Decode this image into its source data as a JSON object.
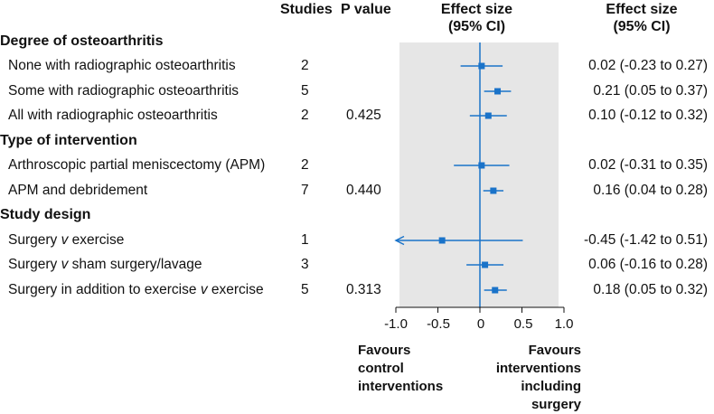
{
  "chart_data": {
    "type": "forest",
    "headers": {
      "studies": "Studies",
      "p_value": "P value",
      "effect_plot_line1": "Effect size",
      "effect_plot_line2": "(95% CI)",
      "effect_text_line1": "Effect size",
      "effect_text_line2": "(95% CI)"
    },
    "groups": [
      {
        "title": "Degree of osteoarthritis",
        "rows": [
          {
            "label": "None with radiographic osteoarthritis",
            "studies": "2",
            "p": "",
            "est": 0.02,
            "lo": -0.23,
            "hi": 0.27,
            "ci_text": "0.02 (-0.23 to 0.27)"
          },
          {
            "label": "Some with radiographic osteoarthritis",
            "studies": "5",
            "p": "",
            "est": 0.21,
            "lo": 0.05,
            "hi": 0.37,
            "ci_text": "0.21 (0.05 to 0.37)"
          },
          {
            "label": "All with radiographic osteoarthritis",
            "studies": "2",
            "p": "0.425",
            "est": 0.1,
            "lo": -0.12,
            "hi": 0.32,
            "ci_text": "0.10 (-0.12 to 0.32)"
          }
        ]
      },
      {
        "title": "Type of intervention",
        "rows": [
          {
            "label": "Arthroscopic partial meniscectomy (APM)",
            "studies": "2",
            "p": "",
            "est": 0.02,
            "lo": -0.31,
            "hi": 0.35,
            "ci_text": "0.02 (-0.31 to 0.35)"
          },
          {
            "label": "APM and debridement",
            "studies": "7",
            "p": "0.440",
            "est": 0.16,
            "lo": 0.04,
            "hi": 0.28,
            "ci_text": "0.16 (0.04 to 0.28)"
          }
        ]
      },
      {
        "title": "Study design",
        "rows": [
          {
            "label_parts": [
              "Surgery ",
              "v",
              " exercise"
            ],
            "studies": "1",
            "p": "",
            "est": -0.45,
            "lo": -1.42,
            "hi": 0.51,
            "ci_text": "-0.45 (-1.42 to 0.51)"
          },
          {
            "label_parts": [
              "Surgery ",
              "v",
              " sham surgery/lavage"
            ],
            "studies": "3",
            "p": "",
            "est": 0.06,
            "lo": -0.16,
            "hi": 0.28,
            "ci_text": "0.06 (-0.16 to 0.28)"
          },
          {
            "label_parts": [
              "Surgery in addition to exercise ",
              "v",
              " exercise"
            ],
            "studies": "5",
            "p": "0.313",
            "est": 0.18,
            "lo": 0.05,
            "hi": 0.32,
            "ci_text": "0.18 (0.05 to 0.32)"
          }
        ]
      }
    ],
    "xlim": [
      -1.0,
      1.0
    ],
    "ticks": [
      -1.0,
      -0.5,
      0,
      0.5,
      1.0
    ],
    "tick_labels": [
      "-1.0",
      "-0.5",
      "0",
      "0.5",
      "1.0"
    ],
    "reference_line": 0,
    "favours_left": [
      "Favours",
      "control",
      "interventions"
    ],
    "favours_right": [
      "Favours",
      "interventions",
      "including",
      "surgery"
    ],
    "colors": {
      "marker": "#1a73c9",
      "panel": "#e6e6e6",
      "ref": "#1a73c9"
    }
  }
}
